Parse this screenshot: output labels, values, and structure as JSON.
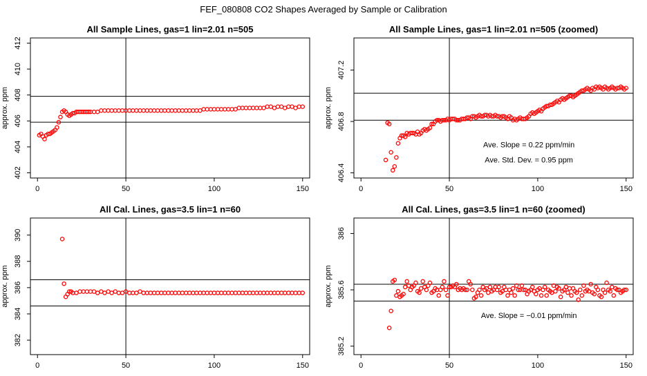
{
  "title": "FEF_080808  CO2 Shapes Averaged by Sample or Calibration",
  "colors": {
    "points": "#ff0000",
    "axes": "#000000",
    "background": "#ffffff"
  },
  "chart_data": [
    {
      "type": "scatter",
      "title": "All Sample Lines, gas=1 lin=2.01 n=505",
      "ylabel": "approx. ppm",
      "xlabel": "",
      "xlim": [
        -4,
        154
      ],
      "ylim": [
        401.6,
        412.4
      ],
      "xticks": [
        0,
        50,
        100,
        150
      ],
      "yticks": [
        402,
        404,
        406,
        408,
        410,
        412
      ],
      "reference_lines": {
        "v": [
          50
        ],
        "h": [
          405.9,
          407.9
        ]
      },
      "grid": false,
      "annotations": [],
      "series": [
        {
          "x": [
            1,
            2,
            3,
            4,
            5,
            6,
            7,
            8,
            9,
            10,
            11,
            12,
            13,
            14,
            15,
            16,
            17,
            18,
            19,
            20,
            21,
            22,
            23,
            24,
            25,
            26,
            27,
            28,
            29,
            30,
            32,
            34,
            36,
            38,
            40,
            42,
            44,
            46,
            48,
            50,
            52,
            54,
            56,
            58,
            60,
            62,
            64,
            66,
            68,
            70,
            72,
            74,
            76,
            78,
            80,
            82,
            84,
            86,
            88,
            90,
            92,
            94,
            96,
            98,
            100,
            102,
            104,
            106,
            108,
            110,
            112,
            114,
            116,
            118,
            120,
            122,
            124,
            126,
            128,
            130,
            132,
            134,
            136,
            138,
            140,
            142,
            144,
            146,
            148,
            150
          ],
          "y": [
            404.9,
            405.0,
            404.8,
            404.6,
            404.9,
            405.0,
            405.0,
            405.1,
            405.2,
            405.3,
            405.5,
            405.9,
            406.3,
            406.7,
            406.8,
            406.7,
            406.5,
            406.4,
            406.5,
            406.6,
            406.6,
            406.7,
            406.7,
            406.7,
            406.7,
            406.7,
            406.7,
            406.7,
            406.7,
            406.7,
            406.7,
            406.7,
            406.8,
            406.8,
            406.8,
            406.8,
            406.8,
            406.8,
            406.8,
            406.8,
            406.8,
            406.8,
            406.8,
            406.8,
            406.8,
            406.8,
            406.8,
            406.8,
            406.8,
            406.8,
            406.8,
            406.8,
            406.8,
            406.8,
            406.8,
            406.8,
            406.8,
            406.8,
            406.8,
            406.8,
            406.8,
            406.9,
            406.9,
            406.9,
            406.9,
            406.9,
            406.9,
            406.9,
            406.9,
            406.9,
            406.9,
            407.0,
            407.0,
            407.0,
            407.0,
            407.0,
            407.0,
            407.0,
            407.0,
            407.1,
            407.1,
            407.0,
            407.1,
            407.1,
            407.0,
            407.1,
            407.1,
            407.0,
            407.1,
            407.1
          ]
        }
      ]
    },
    {
      "type": "scatter",
      "title": "All Sample Lines, gas=1 lin=2.01 n=505 (zoomed)",
      "ylabel": "approx. ppm",
      "xlabel": "",
      "xlim": [
        -4,
        154
      ],
      "ylim": [
        406.36,
        407.45
      ],
      "xticks": [
        0,
        50,
        100,
        150
      ],
      "yticks": [
        406.4,
        406.8,
        407.2
      ],
      "reference_lines": {
        "v": [
          50
        ],
        "h": [
          406.81,
          407.02
        ]
      },
      "grid": false,
      "annotations": [
        {
          "text": "Ave. Slope =  0.22  ppm/min",
          "x": 95,
          "y": 406.6
        },
        {
          "text": "Ave. Std. Dev. =  0.95  ppm",
          "x": 95,
          "y": 406.48
        }
      ],
      "series": [
        {
          "x": [
            14,
            15,
            16,
            17,
            18,
            19,
            20,
            21,
            22,
            23,
            24,
            25,
            26,
            27,
            28,
            29,
            30,
            31,
            32,
            33,
            34,
            35,
            36,
            37,
            38,
            39,
            40,
            41,
            42,
            43,
            44,
            45,
            46,
            47,
            48,
            49,
            50,
            51,
            52,
            53,
            54,
            55,
            56,
            57,
            58,
            59,
            60,
            61,
            62,
            63,
            64,
            65,
            66,
            67,
            68,
            69,
            70,
            71,
            72,
            73,
            74,
            75,
            76,
            77,
            78,
            79,
            80,
            81,
            82,
            83,
            84,
            85,
            86,
            87,
            88,
            89,
            90,
            91,
            92,
            93,
            94,
            95,
            96,
            97,
            98,
            99,
            100,
            101,
            102,
            103,
            104,
            105,
            106,
            107,
            108,
            109,
            110,
            111,
            112,
            113,
            114,
            115,
            116,
            117,
            118,
            119,
            120,
            121,
            122,
            123,
            124,
            125,
            126,
            127,
            128,
            129,
            130,
            131,
            132,
            133,
            134,
            135,
            136,
            137,
            138,
            139,
            140,
            141,
            142,
            143,
            144,
            145,
            146,
            147,
            148,
            149,
            150
          ],
          "y": [
            406.5,
            406.79,
            406.78,
            406.56,
            406.42,
            406.45,
            406.52,
            406.63,
            406.67,
            406.69,
            406.69,
            406.68,
            406.71,
            406.7,
            406.71,
            406.71,
            406.71,
            406.7,
            406.72,
            406.7,
            406.71,
            406.73,
            406.74,
            406.73,
            406.74,
            406.75,
            406.78,
            406.78,
            406.8,
            406.81,
            406.81,
            406.8,
            406.81,
            406.81,
            406.81,
            406.82,
            406.81,
            406.82,
            406.82,
            406.82,
            406.81,
            406.81,
            406.81,
            406.82,
            406.82,
            406.82,
            406.83,
            406.83,
            406.82,
            406.84,
            406.84,
            406.83,
            406.84,
            406.85,
            406.84,
            406.84,
            406.85,
            406.85,
            406.84,
            406.85,
            406.84,
            406.84,
            406.85,
            406.84,
            406.84,
            406.83,
            406.84,
            406.84,
            406.83,
            406.82,
            406.84,
            406.83,
            406.81,
            406.82,
            406.81,
            406.82,
            406.83,
            406.82,
            406.82,
            406.82,
            406.83,
            406.84,
            406.86,
            406.87,
            406.86,
            406.87,
            406.88,
            406.89,
            406.88,
            406.9,
            406.91,
            406.92,
            406.92,
            406.93,
            406.93,
            406.94,
            406.95,
            406.96,
            406.95,
            406.97,
            406.98,
            406.97,
            406.98,
            406.99,
            407.0,
            407.0,
            406.99,
            407.0,
            407.01,
            407.02,
            407.03,
            407.04,
            407.04,
            407.05,
            407.06,
            407.05,
            407.04,
            407.06,
            407.05,
            407.07,
            407.06,
            407.07,
            407.06,
            407.05,
            407.07,
            407.06,
            407.05,
            407.06,
            407.07,
            407.06,
            407.05,
            407.06,
            407.06,
            407.07,
            407.06,
            407.05,
            407.06
          ]
        }
      ]
    },
    {
      "type": "scatter",
      "title": "All Cal. Lines, gas=3.5 lin=1 n=60",
      "ylabel": "approx. ppm",
      "xlabel": "",
      "xlim": [
        -4,
        154
      ],
      "ylim": [
        380.9,
        391.3
      ],
      "xticks": [
        0,
        50,
        100,
        150
      ],
      "yticks": [
        382,
        384,
        386,
        388,
        390
      ],
      "reference_lines": {
        "v": [
          50
        ],
        "h": [
          384.6,
          386.6
        ]
      },
      "grid": false,
      "annotations": [],
      "series": [
        {
          "x": [
            14,
            15,
            16,
            17,
            18,
            19,
            20,
            22,
            24,
            26,
            28,
            30,
            32,
            34,
            36,
            38,
            40,
            42,
            44,
            46,
            48,
            50,
            52,
            54,
            56,
            58,
            60,
            62,
            64,
            66,
            68,
            70,
            72,
            74,
            76,
            78,
            80,
            82,
            84,
            86,
            88,
            90,
            92,
            94,
            96,
            98,
            100,
            102,
            104,
            106,
            108,
            110,
            112,
            114,
            116,
            118,
            120,
            122,
            124,
            126,
            128,
            130,
            132,
            134,
            136,
            138,
            140,
            142,
            144,
            146,
            148,
            150
          ],
          "y": [
            389.7,
            386.3,
            385.3,
            385.5,
            385.7,
            385.7,
            385.6,
            385.6,
            385.7,
            385.7,
            385.7,
            385.7,
            385.7,
            385.6,
            385.7,
            385.6,
            385.7,
            385.6,
            385.7,
            385.6,
            385.6,
            385.7,
            385.6,
            385.6,
            385.6,
            385.7,
            385.6,
            385.6,
            385.6,
            385.6,
            385.6,
            385.6,
            385.6,
            385.6,
            385.6,
            385.6,
            385.6,
            385.6,
            385.6,
            385.6,
            385.6,
            385.6,
            385.6,
            385.6,
            385.6,
            385.6,
            385.6,
            385.6,
            385.6,
            385.6,
            385.6,
            385.6,
            385.6,
            385.6,
            385.6,
            385.6,
            385.6,
            385.6,
            385.6,
            385.6,
            385.6,
            385.6,
            385.6,
            385.6,
            385.6,
            385.6,
            385.6,
            385.6,
            385.6,
            385.6,
            385.6,
            385.6
          ]
        }
      ]
    },
    {
      "type": "scatter",
      "title": "All Cal. Lines, gas=3.5 lin=1 n=60 (zoomed)",
      "ylabel": "approx. ppm",
      "xlabel": "",
      "xlim": [
        -4,
        154
      ],
      "ylim": [
        385.14,
        386.11
      ],
      "xticks": [
        0,
        50,
        100,
        150
      ],
      "yticks": [
        385.2,
        385.6,
        386.0
      ],
      "reference_lines": {
        "v": [
          50
        ],
        "h": [
          385.52,
          385.64
        ]
      },
      "grid": false,
      "annotations": [
        {
          "text": "Ave. Slope =  −0.01  ppm/min",
          "x": 95,
          "y": 385.4
        }
      ],
      "series": [
        {
          "x": [
            16,
            17,
            18,
            19,
            20,
            21,
            22,
            23,
            24,
            25,
            26,
            27,
            28,
            29,
            30,
            31,
            32,
            33,
            34,
            35,
            36,
            37,
            38,
            39,
            40,
            41,
            42,
            43,
            44,
            45,
            46,
            47,
            48,
            49,
            50,
            51,
            52,
            53,
            54,
            55,
            56,
            57,
            58,
            59,
            60,
            61,
            62,
            63,
            64,
            65,
            66,
            67,
            68,
            69,
            70,
            71,
            72,
            73,
            74,
            75,
            76,
            77,
            78,
            79,
            80,
            81,
            82,
            83,
            84,
            85,
            86,
            87,
            88,
            89,
            90,
            91,
            92,
            93,
            94,
            95,
            96,
            97,
            98,
            99,
            100,
            101,
            102,
            103,
            104,
            105,
            106,
            107,
            108,
            109,
            110,
            111,
            112,
            113,
            114,
            115,
            116,
            117,
            118,
            119,
            120,
            121,
            122,
            123,
            124,
            125,
            126,
            127,
            128,
            129,
            130,
            131,
            132,
            133,
            134,
            135,
            136,
            137,
            138,
            139,
            140,
            141,
            142,
            143,
            144,
            145,
            146,
            147,
            148,
            149,
            150
          ],
          "y": [
            385.33,
            385.45,
            385.66,
            385.67,
            385.56,
            385.59,
            385.55,
            385.56,
            385.57,
            385.62,
            385.66,
            385.63,
            385.6,
            385.62,
            385.63,
            385.65,
            385.59,
            385.58,
            385.61,
            385.66,
            385.62,
            385.6,
            385.63,
            385.65,
            385.58,
            385.59,
            385.61,
            385.6,
            385.56,
            385.6,
            385.62,
            385.66,
            385.6,
            385.56,
            385.62,
            385.62,
            385.63,
            385.62,
            385.64,
            385.6,
            385.61,
            385.6,
            385.61,
            385.6,
            385.6,
            385.66,
            385.64,
            385.6,
            385.54,
            385.55,
            385.58,
            385.6,
            385.56,
            385.62,
            385.6,
            385.61,
            385.58,
            385.62,
            385.59,
            385.6,
            385.62,
            385.6,
            385.62,
            385.58,
            385.59,
            385.62,
            385.6,
            385.56,
            385.6,
            385.58,
            385.61,
            385.56,
            385.63,
            385.6,
            385.6,
            385.63,
            385.6,
            385.6,
            385.57,
            385.59,
            385.6,
            385.62,
            385.59,
            385.57,
            385.6,
            385.61,
            385.56,
            385.6,
            385.62,
            385.56,
            385.6,
            385.59,
            385.58,
            385.63,
            385.59,
            385.62,
            385.61,
            385.55,
            385.59,
            385.6,
            385.62,
            385.58,
            385.61,
            385.56,
            385.61,
            385.59,
            385.58,
            385.53,
            385.6,
            385.56,
            385.63,
            385.59,
            385.6,
            385.59,
            385.64,
            385.58,
            385.57,
            385.62,
            385.6,
            385.56,
            385.55,
            385.6,
            385.58,
            385.65,
            385.6,
            385.59,
            385.62,
            385.56,
            385.61,
            385.6,
            385.6,
            385.58,
            385.59,
            385.6,
            385.6
          ]
        }
      ]
    }
  ]
}
